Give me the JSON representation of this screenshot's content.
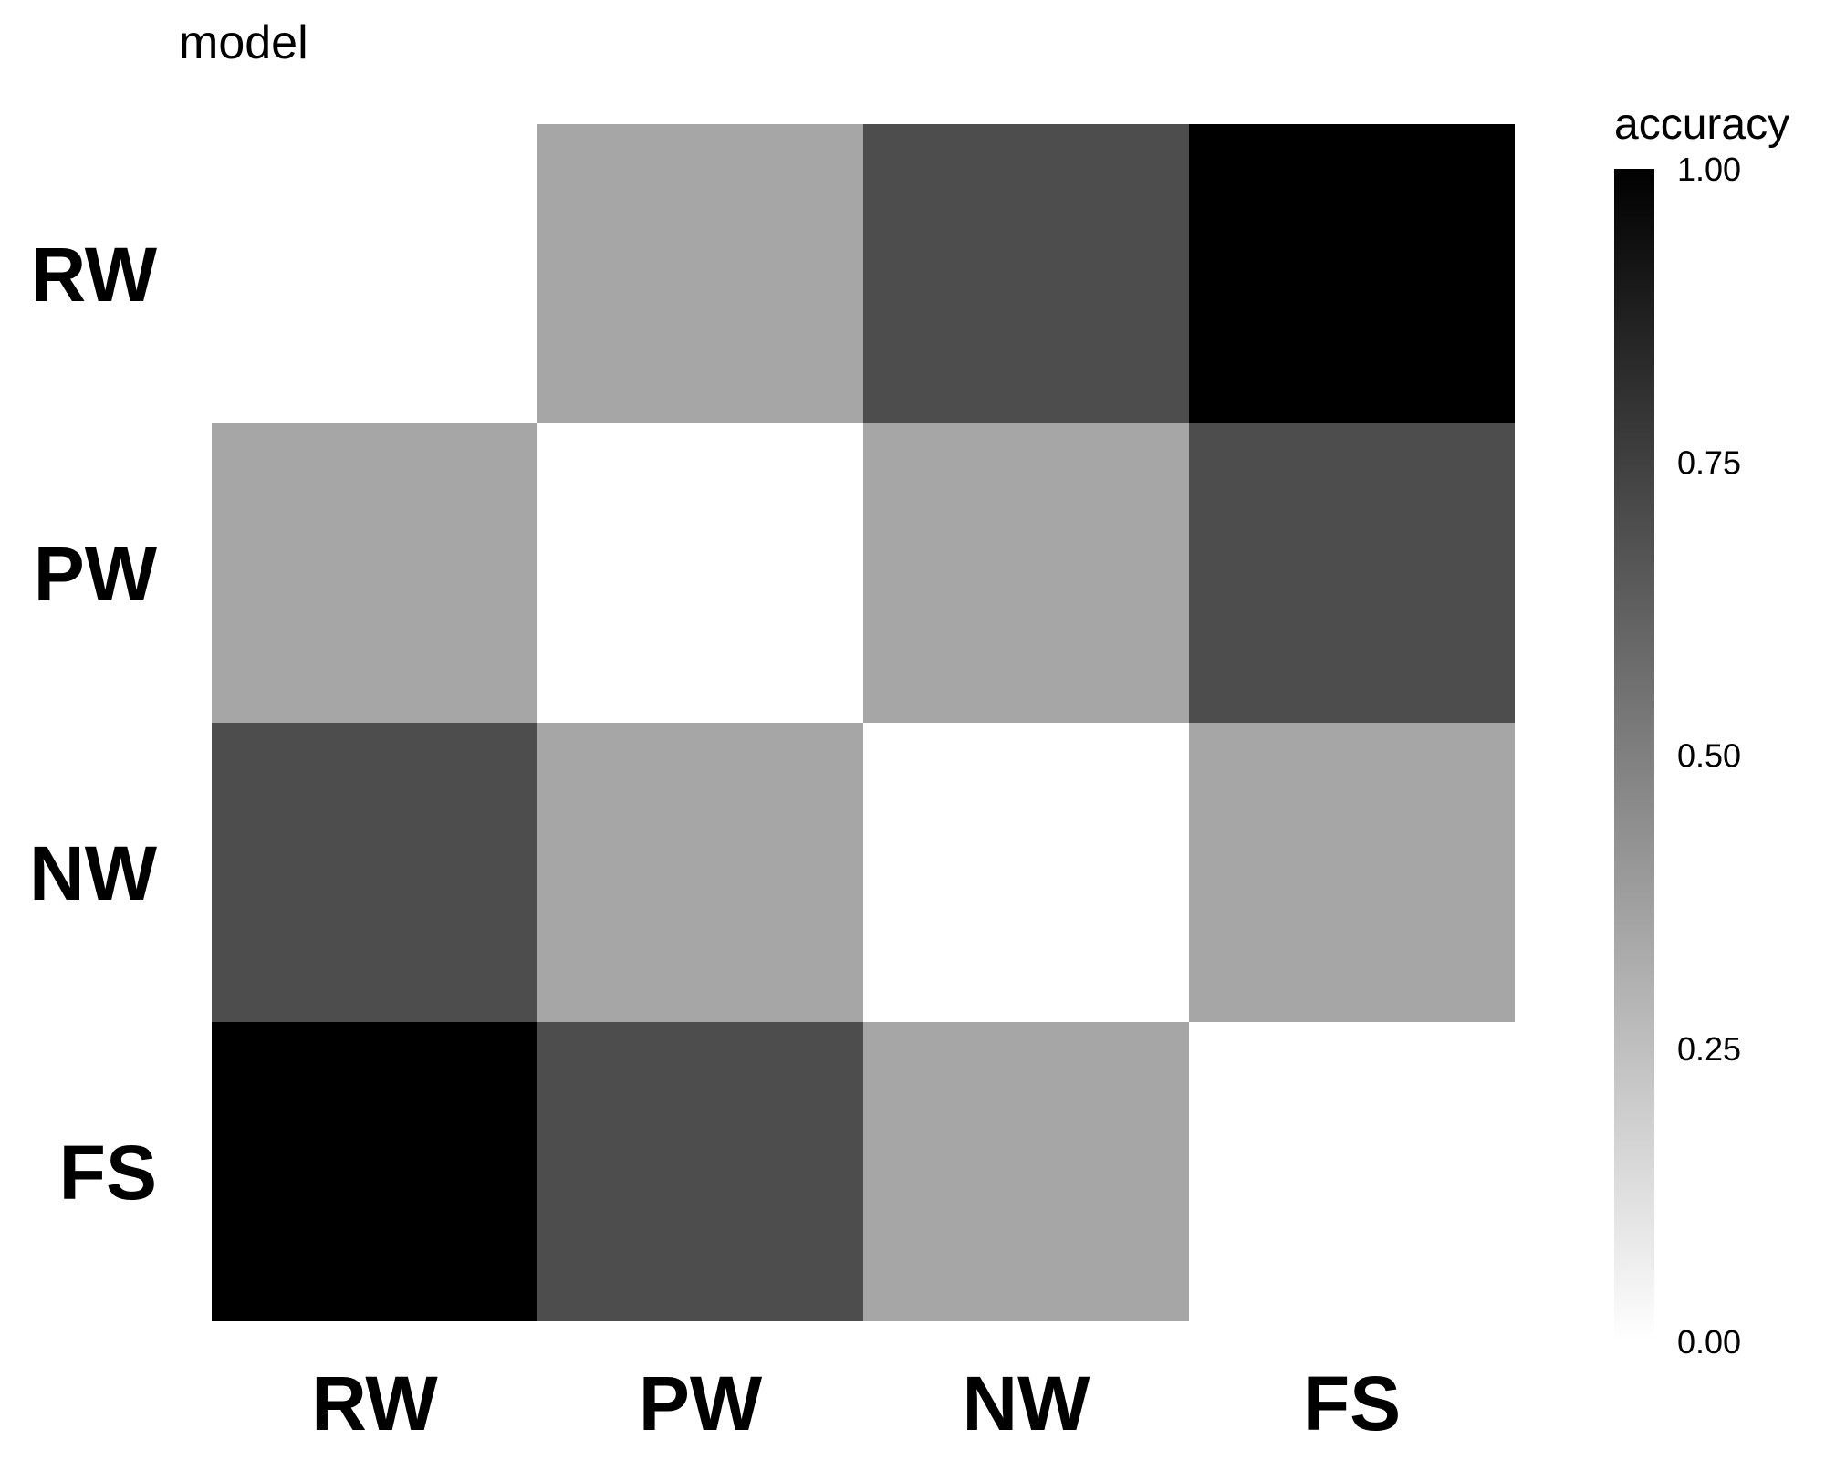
{
  "chart_data": {
    "type": "heatmap",
    "ylabel": "model",
    "x_categories": [
      "RW",
      "PW",
      "NW",
      "FS"
    ],
    "y_categories": [
      "RW",
      "PW",
      "NW",
      "FS"
    ],
    "values": [
      [
        0.0,
        0.35,
        0.7,
        1.0
      ],
      [
        0.35,
        0.0,
        0.35,
        0.7
      ],
      [
        0.7,
        0.35,
        0.0,
        0.35
      ],
      [
        1.0,
        0.7,
        0.35,
        0.0
      ]
    ],
    "colorscale": {
      "low": "#ffffff",
      "high": "#000000"
    },
    "legend": {
      "title": "accuracy",
      "ticks": [
        "1.00",
        "0.75",
        "0.50",
        "0.25",
        "0.00"
      ],
      "tick_values": [
        1.0,
        0.75,
        0.5,
        0.25,
        0.0
      ],
      "range": [
        0,
        1
      ],
      "placement": "right"
    }
  }
}
